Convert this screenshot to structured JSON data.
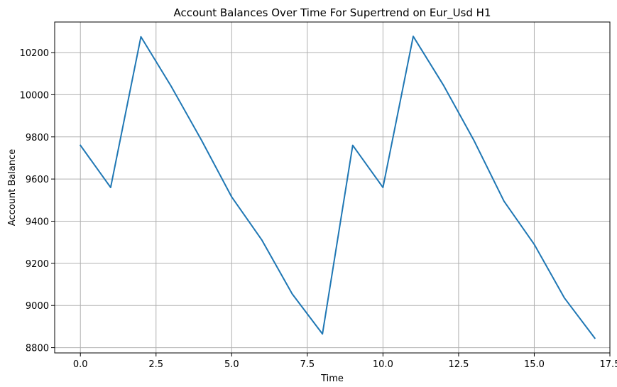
{
  "chart_data": {
    "type": "line",
    "title": "Account Balances Over Time For Supertrend on Eur_Usd H1",
    "xlabel": "Time",
    "ylabel": "Account Balance",
    "xlim": [
      -0.85,
      17.5
    ],
    "ylim": [
      8775,
      10345
    ],
    "xticks": [
      0.0,
      2.5,
      5.0,
      7.5,
      10.0,
      12.5,
      15.0,
      17.5
    ],
    "xtick_labels": [
      "0.0",
      "2.5",
      "5.0",
      "7.5",
      "10.0",
      "12.5",
      "15.0",
      "17.5"
    ],
    "yticks": [
      8800,
      9000,
      9200,
      9400,
      9600,
      9800,
      10000,
      10200
    ],
    "ytick_labels": [
      "8800",
      "9000",
      "9200",
      "9400",
      "9600",
      "9800",
      "10000",
      "10200"
    ],
    "grid": true,
    "series": [
      {
        "color": "#1f77b4",
        "x": [
          0,
          1,
          2,
          3,
          4,
          5,
          6,
          7,
          8,
          9,
          10,
          11,
          12,
          13,
          14,
          15,
          16,
          17
        ],
        "y": [
          9760,
          9560,
          10275,
          10040,
          9785,
          9515,
          9310,
          9055,
          8865,
          9760,
          9560,
          10277,
          10045,
          9785,
          9495,
          9290,
          9035,
          8845
        ]
      }
    ]
  }
}
